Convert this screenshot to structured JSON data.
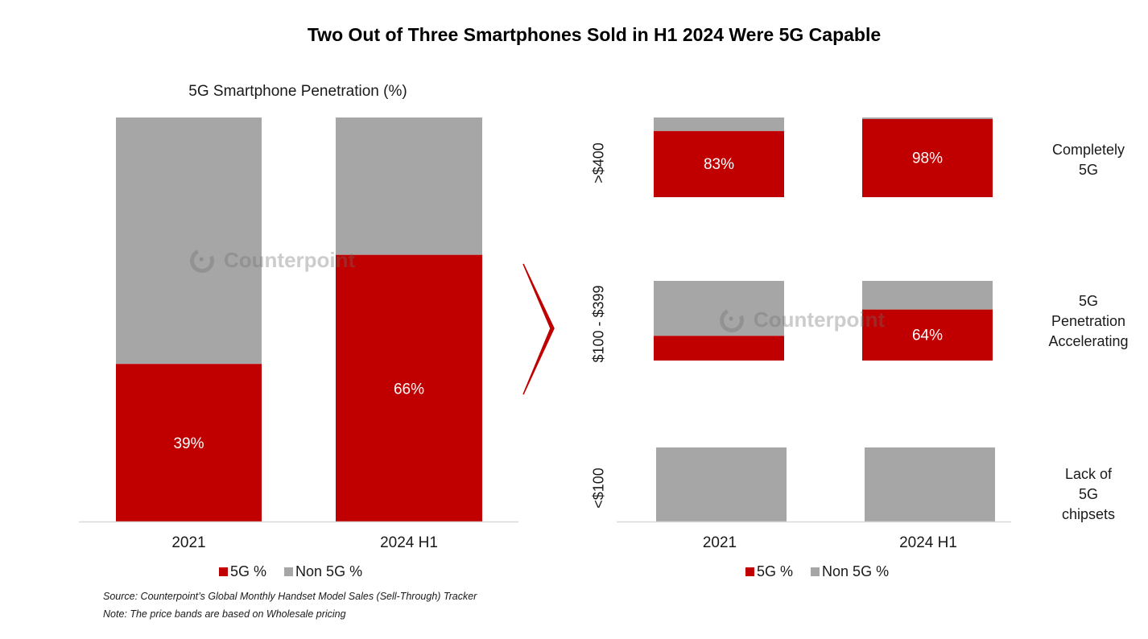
{
  "title": "Two Out of Three Smartphones Sold in H1 2024 Were 5G Capable",
  "colors": {
    "fiveg": "#C00000",
    "non5g": "#A6A6A6",
    "arrow": "#C00000",
    "axis": "#D9D9D9"
  },
  "watermark": "Counterpoint",
  "source": "Source: Counterpoint’s Global Monthly Handset Model Sales (Sell-Through) Tracker",
  "note": "Note: The price bands are based on Wholesale pricing",
  "chart_data": [
    {
      "type": "bar",
      "stacked": true,
      "title": "5G Smartphone Penetration (%)",
      "categories": [
        "2021",
        "2024 H1"
      ],
      "series": [
        {
          "name": "5G %",
          "values": [
            39,
            66
          ],
          "labels": [
            "39%",
            "66%"
          ]
        },
        {
          "name": "Non 5G %",
          "values": [
            61,
            34
          ]
        }
      ],
      "ylim": [
        0,
        100
      ],
      "legend": "bottom",
      "legend_labels": [
        "5G %",
        "Non 5G %"
      ]
    },
    {
      "type": "bar",
      "stacked": true,
      "title": "",
      "categories": [
        "2021",
        "2024 H1"
      ],
      "price_bands": [
        {
          "label": ">$400",
          "annotation": [
            "Completely",
            "5G"
          ],
          "fiveg": [
            83,
            98
          ],
          "non5g": [
            17,
            2
          ],
          "labels": [
            "83%",
            "98%"
          ]
        },
        {
          "label": "$100 - $399",
          "annotation": [
            "5G",
            "Penetration",
            "Accelerating"
          ],
          "fiveg": [
            31,
            64
          ],
          "non5g": [
            69,
            36
          ],
          "labels": [
            "",
            "64%"
          ]
        },
        {
          "label": "<$100",
          "annotation": [
            "Lack of",
            "5G",
            "chipsets"
          ],
          "fiveg": [
            0,
            0
          ],
          "non5g": [
            100,
            100
          ],
          "labels": [
            "",
            ""
          ]
        }
      ],
      "ylim": [
        0,
        100
      ],
      "legend": "bottom",
      "legend_labels": [
        "5G %",
        "Non 5G %"
      ]
    }
  ]
}
